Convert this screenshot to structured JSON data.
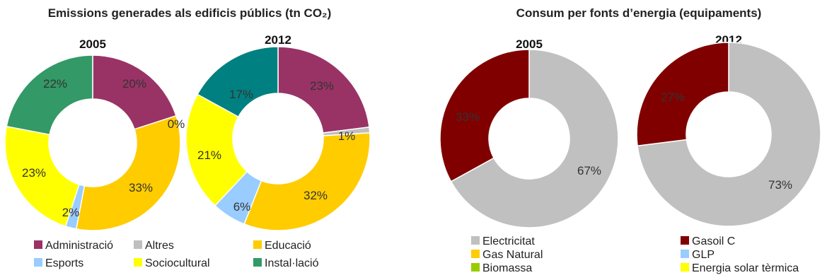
{
  "chart_data": [
    {
      "type": "pie",
      "variant": "donut",
      "title": "Emissions generades als edificis públics (tn CO₂)",
      "categories": [
        "Administració",
        "Altres",
        "Educació",
        "Esports",
        "Sociocultural",
        "Instal·lació"
      ],
      "colors": [
        "#993366",
        "#bfbfbf",
        "#ffcc00",
        "#99ccff",
        "#ffff00",
        "#339966"
      ],
      "series": [
        {
          "name": "2005",
          "values": [
            20,
            0,
            33,
            2,
            23,
            22
          ],
          "labels": [
            "20%",
            "0%",
            "33%",
            "2%",
            "23%",
            "22%"
          ],
          "colors": [
            "#993366",
            "#bfbfbf",
            "#ffcc00",
            "#99ccff",
            "#ffff00",
            "#339966"
          ]
        },
        {
          "name": "2012",
          "values": [
            23,
            1,
            32,
            6,
            21,
            17
          ],
          "labels": [
            "23%",
            "1%",
            "32%",
            "6%",
            "21%",
            "17%"
          ],
          "colors": [
            "#993366",
            "#bfbfbf",
            "#ffcc00",
            "#99ccff",
            "#ffff00",
            "#008080"
          ]
        }
      ],
      "legend": "bottom"
    },
    {
      "type": "pie",
      "variant": "donut",
      "title": "Consum per fonts d’energia (equipaments)",
      "categories": [
        "Electricitat",
        "Gasoil C",
        "Gas Natural",
        "GLP",
        "Biomassa",
        "Energia solar tèrmica"
      ],
      "colors": [
        "#c0c0c0",
        "#800000",
        "#ffcc00",
        "#99ccff",
        "#99cc00",
        "#ffff00"
      ],
      "series": [
        {
          "name": "2005",
          "values": [
            67,
            33,
            0,
            0,
            0,
            0
          ],
          "labels": [
            "67%",
            "33%",
            "",
            "",
            "",
            ""
          ]
        },
        {
          "name": "2012",
          "values": [
            73,
            27,
            0,
            0,
            0,
            0
          ],
          "labels": [
            "73%",
            "27%",
            "",
            "",
            "",
            ""
          ]
        }
      ],
      "legend": "bottom"
    }
  ]
}
